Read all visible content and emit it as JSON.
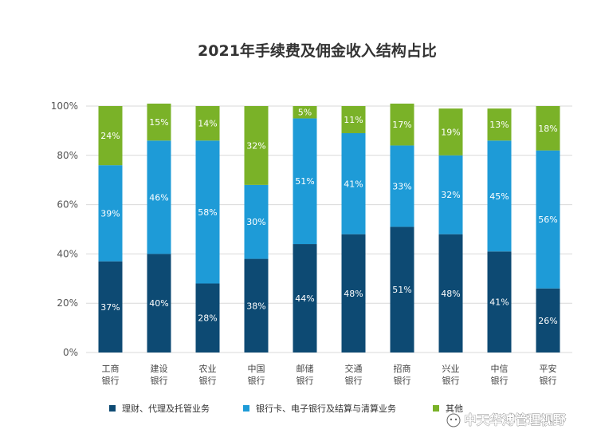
{
  "chart_data": {
    "type": "bar",
    "stacked": true,
    "title": "2021年手续费及佣金收入结构占比",
    "categories": [
      [
        "工商",
        "银行"
      ],
      [
        "建设",
        "银行"
      ],
      [
        "农业",
        "银行"
      ],
      [
        "中国",
        "银行"
      ],
      [
        "邮储",
        "银行"
      ],
      [
        "交通",
        "银行"
      ],
      [
        "招商",
        "银行"
      ],
      [
        "兴业",
        "银行"
      ],
      [
        "中信",
        "银行"
      ],
      [
        "平安",
        "银行"
      ]
    ],
    "series": [
      {
        "name": "理财、代理及托管业务",
        "color": "#0d4a73",
        "values": [
          37,
          40,
          28,
          38,
          44,
          48,
          51,
          48,
          41,
          26
        ]
      },
      {
        "name": "银行卡、电子银行及结算与清算业务",
        "color": "#1e9bd7",
        "values": [
          39,
          46,
          58,
          30,
          51,
          41,
          33,
          32,
          45,
          56
        ]
      },
      {
        "name": "其他",
        "color": "#7ab228",
        "values": [
          24,
          15,
          14,
          32,
          5,
          11,
          17,
          19,
          13,
          18
        ]
      }
    ],
    "yticks": [
      "0%",
      "20%",
      "40%",
      "60%",
      "80%",
      "100%"
    ],
    "ylim": [
      0,
      100
    ],
    "grid": true,
    "legend": "bottom"
  },
  "watermark": "中天华溥管理视野"
}
